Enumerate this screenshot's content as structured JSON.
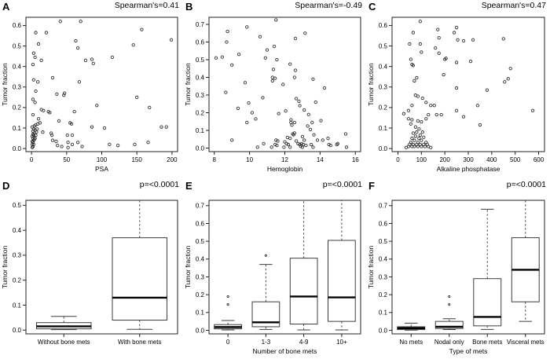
{
  "figure": {
    "background": "#ffffff",
    "text_color": "#000000",
    "point_color": "#2f2f2f",
    "box_stroke": "#3c3c3c",
    "median_color": "#000000",
    "whisker_color": "#4a4a4a",
    "frame_color": "#222222"
  },
  "chart_data": [
    {
      "type": "scatter",
      "panel_label": "A",
      "stat_label": "Spearman's=0.41",
      "xlabel": "PSA",
      "ylabel": "Tumor fraction",
      "xlim": [
        -8,
        208
      ],
      "ylim": [
        -0.015,
        0.64
      ],
      "xticks": [
        0,
        50,
        100,
        150,
        200
      ],
      "xtick_labels": [
        "0",
        "50",
        "100",
        "150",
        "200"
      ],
      "yticks": [
        0,
        0.1,
        0.2,
        0.3,
        0.4,
        0.5,
        0.6
      ],
      "grid": false,
      "points": [
        [
          1,
          0.005
        ],
        [
          2,
          0.01
        ],
        [
          1,
          0.02
        ],
        [
          3,
          0.02
        ],
        [
          2,
          0.03
        ],
        [
          1,
          0.035
        ],
        [
          3,
          0.04
        ],
        [
          4,
          0.045
        ],
        [
          2,
          0.05
        ],
        [
          5,
          0.05
        ],
        [
          1,
          0.06
        ],
        [
          3,
          0.065
        ],
        [
          6,
          0.065
        ],
        [
          2,
          0.07
        ],
        [
          4,
          0.075
        ],
        [
          7,
          0.08
        ],
        [
          2,
          0.085
        ],
        [
          5,
          0.09
        ],
        [
          3,
          0.095
        ],
        [
          8,
          0.095
        ],
        [
          1,
          0.105
        ],
        [
          4,
          0.11
        ],
        [
          6,
          0.115
        ],
        [
          9,
          0.12
        ],
        [
          12,
          0.125
        ],
        [
          41,
          0.62
        ],
        [
          70,
          0.62
        ],
        [
          6,
          0.565
        ],
        [
          21,
          0.565
        ],
        [
          157,
          0.58
        ],
        [
          199,
          0.53
        ],
        [
          63,
          0.525
        ],
        [
          10,
          0.51
        ],
        [
          145,
          0.505
        ],
        [
          66,
          0.49
        ],
        [
          3,
          0.465
        ],
        [
          5,
          0.445
        ],
        [
          115,
          0.445
        ],
        [
          14,
          0.43
        ],
        [
          86,
          0.435
        ],
        [
          88,
          0.415
        ],
        [
          77,
          0.43
        ],
        [
          2,
          0.41
        ],
        [
          3,
          0.335
        ],
        [
          9,
          0.325
        ],
        [
          68,
          0.325
        ],
        [
          30,
          0.345
        ],
        [
          6,
          0.28
        ],
        [
          36,
          0.265
        ],
        [
          47,
          0.27
        ],
        [
          46,
          0.26
        ],
        [
          150,
          0.25
        ],
        [
          2,
          0.24
        ],
        [
          5,
          0.225
        ],
        [
          93,
          0.21
        ],
        [
          168,
          0.2
        ],
        [
          14,
          0.19
        ],
        [
          17,
          0.185
        ],
        [
          24,
          0.18
        ],
        [
          26,
          0.175
        ],
        [
          61,
          0.18
        ],
        [
          2,
          0.165
        ],
        [
          10,
          0.145
        ],
        [
          39,
          0.135
        ],
        [
          55,
          0.125
        ],
        [
          57,
          0.12
        ],
        [
          185,
          0.105
        ],
        [
          192,
          0.105
        ],
        [
          86,
          0.105
        ],
        [
          104,
          0.1
        ],
        [
          16,
          0.08
        ],
        [
          28,
          0.075
        ],
        [
          29,
          0.065
        ],
        [
          51,
          0.065
        ],
        [
          58,
          0.065
        ],
        [
          30,
          0.04
        ],
        [
          35,
          0.035
        ],
        [
          52,
          0.03
        ],
        [
          66,
          0.03
        ],
        [
          111,
          0.02
        ],
        [
          123,
          0.015
        ],
        [
          147,
          0.02
        ],
        [
          166,
          0.03
        ],
        [
          58,
          0.02
        ],
        [
          37,
          0.015
        ],
        [
          43,
          0.01
        ],
        [
          72,
          0.01
        ],
        [
          52,
          0.005
        ]
      ]
    },
    {
      "type": "scatter",
      "panel_label": "B",
      "stat_label": "Spearman's=-0.49",
      "xlabel": "Hemoglobin",
      "ylabel": "Tumor fraction",
      "xlim": [
        7.7,
        16.3
      ],
      "ylim": [
        -0.02,
        0.74
      ],
      "xticks": [
        8,
        10,
        12,
        14,
        16
      ],
      "xtick_labels": [
        "8",
        "10",
        "12",
        "14",
        "16"
      ],
      "yticks": [
        0,
        0.1,
        0.2,
        0.3,
        0.4,
        0.5,
        0.6,
        0.7
      ],
      "grid": false,
      "points": [
        [
          11.5,
          0.725
        ],
        [
          9.85,
          0.685
        ],
        [
          8.75,
          0.66
        ],
        [
          13.15,
          0.65
        ],
        [
          10.6,
          0.63
        ],
        [
          12.6,
          0.62
        ],
        [
          8.7,
          0.6
        ],
        [
          11.4,
          0.575
        ],
        [
          11.0,
          0.555
        ],
        [
          9.4,
          0.53
        ],
        [
          8.1,
          0.51
        ],
        [
          8.45,
          0.515
        ],
        [
          10.9,
          0.51
        ],
        [
          11.55,
          0.5
        ],
        [
          12.3,
          0.475
        ],
        [
          9.0,
          0.47
        ],
        [
          11.35,
          0.445
        ],
        [
          12.6,
          0.44
        ],
        [
          11.3,
          0.4
        ],
        [
          11.45,
          0.395
        ],
        [
          12.55,
          0.4
        ],
        [
          11.3,
          0.38
        ],
        [
          13.6,
          0.39
        ],
        [
          11.9,
          0.36
        ],
        [
          9.75,
          0.37
        ],
        [
          14.25,
          0.34
        ],
        [
          8.65,
          0.315
        ],
        [
          10.75,
          0.285
        ],
        [
          12.65,
          0.28
        ],
        [
          12.8,
          0.265
        ],
        [
          9.95,
          0.255
        ],
        [
          13.75,
          0.26
        ],
        [
          12.85,
          0.24
        ],
        [
          9.35,
          0.225
        ],
        [
          13.1,
          0.215
        ],
        [
          11.65,
          0.195
        ],
        [
          12.05,
          0.21
        ],
        [
          10.15,
          0.2
        ],
        [
          13.35,
          0.19
        ],
        [
          9.85,
          0.145
        ],
        [
          12.35,
          0.16
        ],
        [
          12.35,
          0.145
        ],
        [
          10.35,
          0.165
        ],
        [
          13.55,
          0.145
        ],
        [
          14.05,
          0.155
        ],
        [
          12.4,
          0.13
        ],
        [
          13.3,
          0.125
        ],
        [
          13.45,
          0.105
        ],
        [
          12.45,
          0.08
        ],
        [
          12.5,
          0.075
        ],
        [
          12.55,
          0.085
        ],
        [
          15.45,
          0.08
        ],
        [
          13.65,
          0.075
        ],
        [
          9.0,
          0.045
        ],
        [
          12.15,
          0.06
        ],
        [
          12.3,
          0.055
        ],
        [
          14.45,
          0.055
        ],
        [
          11.5,
          0.045
        ],
        [
          11.6,
          0.04
        ],
        [
          12.0,
          0.035
        ],
        [
          12.65,
          0.04
        ],
        [
          13.85,
          0.045
        ],
        [
          14.15,
          0.045
        ],
        [
          10.8,
          0.025
        ],
        [
          11.45,
          0.02
        ],
        [
          11.55,
          0.015
        ],
        [
          12.1,
          0.025
        ],
        [
          12.2,
          0.02
        ],
        [
          12.75,
          0.025
        ],
        [
          12.85,
          0.02
        ],
        [
          12.95,
          0.025
        ],
        [
          13.05,
          0.02
        ],
        [
          13.2,
          0.015
        ],
        [
          13.5,
          0.02
        ],
        [
          14.5,
          0.02
        ],
        [
          14.6,
          0.015
        ],
        [
          14.95,
          0.02
        ],
        [
          15.0,
          0.025
        ],
        [
          10.45,
          0.005
        ],
        [
          11.25,
          0.005
        ],
        [
          11.95,
          0.005
        ],
        [
          12.3,
          0.005
        ],
        [
          12.9,
          0.01
        ],
        [
          13.0,
          0.005
        ],
        [
          13.6,
          0.005
        ],
        [
          15.5,
          0.005
        ],
        [
          12.55,
          0.145
        ],
        [
          13.0,
          0.065
        ],
        [
          13.1,
          0.045
        ]
      ]
    },
    {
      "type": "scatter",
      "panel_label": "C",
      "stat_label": "Spearman's=0.47",
      "xlabel": "Alkaline phosphatase",
      "ylabel": "Tumor fraction",
      "xlim": [
        -25,
        625
      ],
      "ylim": [
        -0.015,
        0.64
      ],
      "xticks": [
        0,
        100,
        200,
        300,
        400,
        500,
        600
      ],
      "xtick_labels": [
        "0",
        "100",
        "200",
        "300",
        "400",
        "500",
        "600"
      ],
      "yticks": [
        0,
        0.1,
        0.2,
        0.3,
        0.4,
        0.5,
        0.6
      ],
      "grid": false,
      "points": [
        [
          95,
          0.62
        ],
        [
          250,
          0.59
        ],
        [
          170,
          0.58
        ],
        [
          240,
          0.565
        ],
        [
          65,
          0.565
        ],
        [
          175,
          0.54
        ],
        [
          320,
          0.53
        ],
        [
          450,
          0.535
        ],
        [
          255,
          0.53
        ],
        [
          280,
          0.525
        ],
        [
          50,
          0.51
        ],
        [
          95,
          0.51
        ],
        [
          160,
          0.49
        ],
        [
          100,
          0.47
        ],
        [
          175,
          0.465
        ],
        [
          205,
          0.44
        ],
        [
          200,
          0.435
        ],
        [
          250,
          0.42
        ],
        [
          310,
          0.425
        ],
        [
          55,
          0.435
        ],
        [
          60,
          0.41
        ],
        [
          65,
          0.405
        ],
        [
          480,
          0.39
        ],
        [
          195,
          0.36
        ],
        [
          70,
          0.33
        ],
        [
          80,
          0.345
        ],
        [
          470,
          0.34
        ],
        [
          455,
          0.325
        ],
        [
          250,
          0.295
        ],
        [
          380,
          0.285
        ],
        [
          75,
          0.26
        ],
        [
          85,
          0.255
        ],
        [
          105,
          0.245
        ],
        [
          120,
          0.225
        ],
        [
          140,
          0.21
        ],
        [
          340,
          0.21
        ],
        [
          575,
          0.185
        ],
        [
          45,
          0.185
        ],
        [
          60,
          0.21
        ],
        [
          250,
          0.185
        ],
        [
          185,
          0.165
        ],
        [
          165,
          0.165
        ],
        [
          130,
          0.165
        ],
        [
          280,
          0.155
        ],
        [
          350,
          0.115
        ],
        [
          25,
          0.17
        ],
        [
          155,
          0.21
        ],
        [
          35,
          0.005
        ],
        [
          45,
          0.01
        ],
        [
          50,
          0.02
        ],
        [
          55,
          0.03
        ],
        [
          60,
          0.01
        ],
        [
          60,
          0.05
        ],
        [
          65,
          0.02
        ],
        [
          65,
          0.075
        ],
        [
          70,
          0.01
        ],
        [
          70,
          0.04
        ],
        [
          75,
          0.06
        ],
        [
          75,
          0.105
        ],
        [
          80,
          0.02
        ],
        [
          80,
          0.08
        ],
        [
          85,
          0.03
        ],
        [
          85,
          0.01
        ],
        [
          90,
          0.05
        ],
        [
          90,
          0.095
        ],
        [
          95,
          0.02
        ],
        [
          95,
          0.065
        ],
        [
          100,
          0.01
        ],
        [
          100,
          0.04
        ],
        [
          105,
          0.08
        ],
        [
          110,
          0.02
        ],
        [
          110,
          0.055
        ],
        [
          115,
          0.01
        ],
        [
          120,
          0.03
        ],
        [
          125,
          0.02
        ],
        [
          130,
          0.01
        ],
        [
          140,
          0.005
        ],
        [
          55,
          0.12
        ],
        [
          45,
          0.145
        ],
        [
          60,
          0.14
        ],
        [
          85,
          0.135
        ],
        [
          100,
          0.13
        ],
        [
          120,
          0.145
        ]
      ]
    },
    {
      "type": "box",
      "panel_label": "D",
      "stat_label": "p=<0.0001",
      "xlabel": "",
      "ylabel": "Tumor fraction",
      "ylim": [
        -0.015,
        0.52
      ],
      "yticks": [
        0,
        0.1,
        0.2,
        0.3,
        0.4,
        0.5
      ],
      "grid": false,
      "categories": [
        "Without bone mets",
        "With bone mets"
      ],
      "boxes": [
        {
          "q1": 0.005,
          "med": 0.015,
          "q3": 0.03,
          "lo": 0.002,
          "hi": 0.055,
          "lo_cap": true,
          "hi_cap": true,
          "outliers": []
        },
        {
          "q1": 0.04,
          "med": 0.13,
          "q3": 0.37,
          "lo": 0.003,
          "hi": 0.52,
          "lo_cap": true,
          "hi_cap": false,
          "outliers": []
        }
      ]
    },
    {
      "type": "box",
      "panel_label": "E",
      "stat_label": "p=<0.0001",
      "xlabel": "Number of bone mets",
      "ylabel": "Tumor fraction",
      "ylim": [
        -0.02,
        0.73
      ],
      "yticks": [
        0,
        0.1,
        0.2,
        0.3,
        0.4,
        0.5,
        0.6,
        0.7
      ],
      "grid": false,
      "categories": [
        "0",
        "1-3",
        "4-9",
        "10+"
      ],
      "boxes": [
        {
          "q1": 0.008,
          "med": 0.018,
          "q3": 0.032,
          "lo": 0.002,
          "hi": 0.055,
          "lo_cap": true,
          "hi_cap": true,
          "outliers": [
            0.145,
            0.19
          ]
        },
        {
          "q1": 0.02,
          "med": 0.045,
          "q3": 0.16,
          "lo": 0.005,
          "hi": 0.37,
          "lo_cap": true,
          "hi_cap": true,
          "outliers": [
            0.42
          ]
        },
        {
          "q1": 0.035,
          "med": 0.19,
          "q3": 0.405,
          "lo": 0.002,
          "hi": 0.73,
          "lo_cap": true,
          "hi_cap": false,
          "outliers": []
        },
        {
          "q1": 0.05,
          "med": 0.185,
          "q3": 0.505,
          "lo": 0.002,
          "hi": 0.73,
          "lo_cap": true,
          "hi_cap": false,
          "outliers": []
        }
      ]
    },
    {
      "type": "box",
      "panel_label": "F",
      "stat_label": "p=<0.0001",
      "xlabel": "Type of mets",
      "ylabel": "Tumor fraction",
      "ylim": [
        -0.02,
        0.73
      ],
      "yticks": [
        0,
        0.1,
        0.2,
        0.3,
        0.4,
        0.5,
        0.6,
        0.7
      ],
      "grid": false,
      "categories": [
        "No mets",
        "Nodal only",
        "Bone mets",
        "Visceral mets"
      ],
      "boxes": [
        {
          "q1": 0.004,
          "med": 0.012,
          "q3": 0.02,
          "lo": 0.001,
          "hi": 0.04,
          "lo_cap": true,
          "hi_cap": true,
          "outliers": []
        },
        {
          "q1": 0.01,
          "med": 0.02,
          "q3": 0.05,
          "lo": 0.004,
          "hi": 0.065,
          "lo_cap": true,
          "hi_cap": true,
          "outliers": [
            0.145,
            0.19
          ]
        },
        {
          "q1": 0.025,
          "med": 0.075,
          "q3": 0.29,
          "lo": 0.005,
          "hi": 0.68,
          "lo_cap": true,
          "hi_cap": true,
          "outliers": []
        },
        {
          "q1": 0.16,
          "med": 0.34,
          "q3": 0.52,
          "lo": 0.05,
          "hi": 0.73,
          "lo_cap": true,
          "hi_cap": false,
          "outliers": []
        }
      ]
    }
  ]
}
